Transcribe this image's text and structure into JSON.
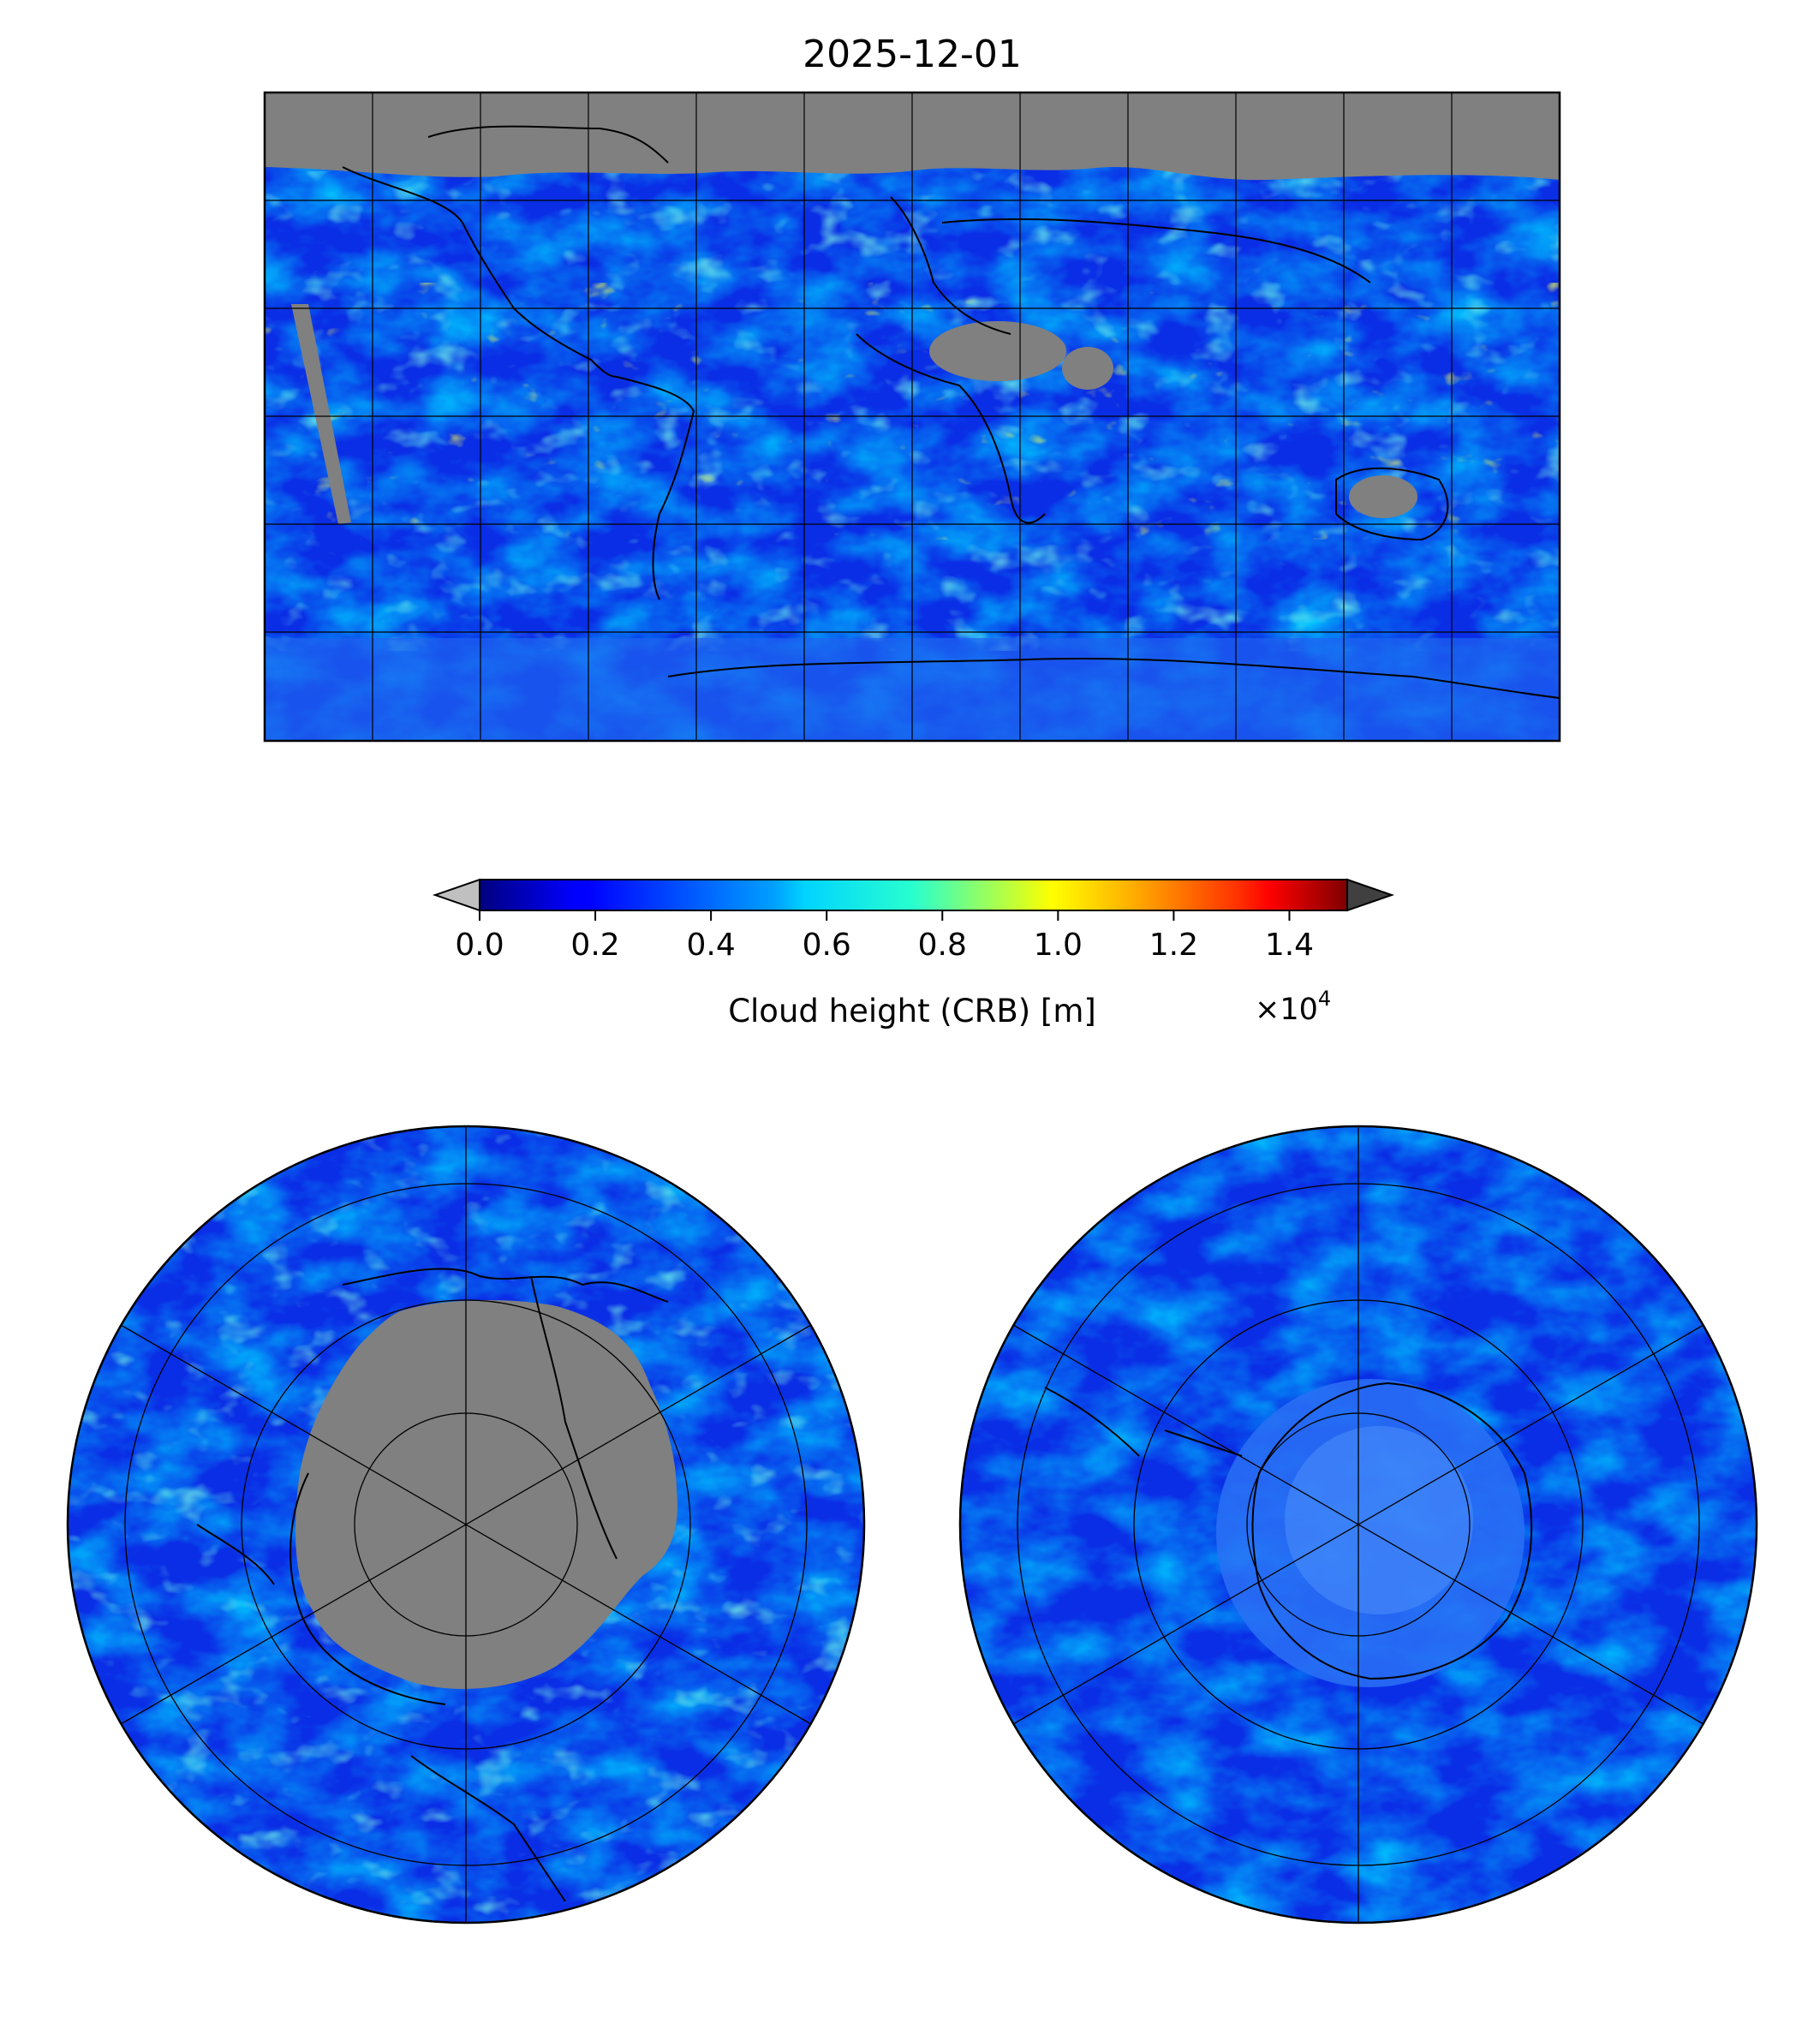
{
  "figure": {
    "title": "2025-12-01"
  },
  "colorbar": {
    "label": "Cloud height (CRB) [m]",
    "multiplier": "×10",
    "multiplier_exponent": "4",
    "colormap": "jet",
    "vmin": 0.0,
    "vmax": 1.5,
    "under_color": "#c0c0c0",
    "over_color": "#404040",
    "ticks": [
      "0.0",
      "0.2",
      "0.4",
      "0.6",
      "0.8",
      "1.0",
      "1.2",
      "1.4"
    ],
    "tick_values": [
      0.0,
      0.2,
      0.4,
      0.6,
      0.8,
      1.0,
      1.2,
      1.4
    ]
  },
  "maps": {
    "global": {
      "projection": "plate-carree",
      "lon_range": [
        -180,
        180
      ],
      "lat_range": [
        -90,
        90
      ],
      "gridline_step_lon": 30,
      "gridline_step_lat": 30
    },
    "north_polar": {
      "projection": "north-polar-stereographic"
    },
    "south_polar": {
      "projection": "south-polar-stereographic"
    }
  },
  "colors": {
    "no_data": "#808080",
    "coastline": "#000000",
    "gridline": "#000000"
  }
}
